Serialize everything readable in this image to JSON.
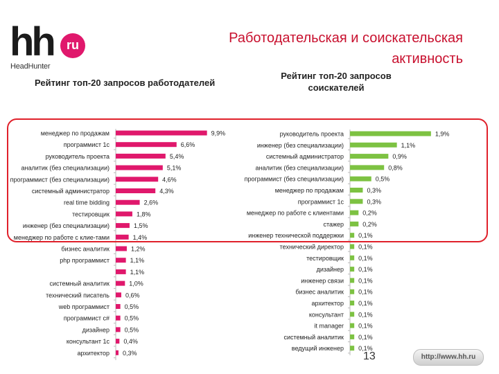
{
  "header": {
    "logo_main": "hh",
    "logo_badge": "ru",
    "logo_sub": "HeadHunter",
    "title": "Работодательская и соискательская активность",
    "title_color": "#c8102e"
  },
  "footer": {
    "page_number": "13",
    "url": "http://www.hh.ru"
  },
  "colors": {
    "employer_bar": "#e0186c",
    "seeker_bar": "#7dc242",
    "highlight_frame": "#e0202a"
  },
  "chart_data": [
    {
      "type": "bar",
      "orientation": "horizontal",
      "title": "Рейтинг топ-20 запросов работодателей",
      "xlim": [
        0,
        10
      ],
      "categories": [
        "менеджер по продажам",
        "программист 1с",
        "руководитель проекта",
        "аналитик (без специализации)",
        "программист (без специализации)",
        "системный администратор",
        "real time bidding",
        "тестировщик",
        "инженер (без специализации)",
        "менеджер по работе с клие-тами",
        "бизнес аналитик",
        "php программист",
        "",
        "системный аналитик",
        "технический писатель",
        "web программист",
        "программист c#",
        "дизайнер",
        "консультант 1с",
        "архитектор"
      ],
      "values": [
        9.9,
        6.6,
        5.4,
        5.1,
        4.6,
        4.3,
        2.6,
        1.8,
        1.5,
        1.4,
        1.2,
        1.1,
        1.1,
        1.0,
        0.6,
        0.5,
        0.5,
        0.5,
        0.4,
        0.3
      ],
      "labels": [
        "9,9%",
        "6,6%",
        "5,4%",
        "5,1%",
        "4,6%",
        "4,3%",
        "2,6%",
        "1,8%",
        "1,5%",
        "1,4%",
        "1,2%",
        "1,1%",
        "1,1%",
        "1,0%",
        "0,6%",
        "0,5%",
        "0,5%",
        "0,5%",
        "0,4%",
        "0,3%"
      ]
    },
    {
      "type": "bar",
      "orientation": "horizontal",
      "title": "Рейтинг топ-20 запросов соискателей",
      "xlim": [
        0,
        2
      ],
      "categories": [
        "руководитель проекта",
        "инженер (без специализации)",
        "системный администратор",
        "аналитик (без специализации)",
        "программист (без специализации)",
        "менеджер по продажам",
        "программист 1с",
        "менеджер по работе с клиентами",
        "стажер",
        "инженер технической поддержки",
        "технический директор",
        "тестировщик",
        "дизайнер",
        "инженер связи",
        "бизнес аналитик",
        "архитектор",
        "консультант",
        "it manager",
        "системный аналитик",
        "ведущий инженер"
      ],
      "values": [
        1.9,
        1.1,
        0.9,
        0.8,
        0.5,
        0.3,
        0.3,
        0.2,
        0.2,
        0.1,
        0.1,
        0.1,
        0.1,
        0.1,
        0.1,
        0.1,
        0.1,
        0.1,
        0.1,
        0.1
      ],
      "labels": [
        "1,9%",
        "1,1%",
        "0,9%",
        "0,8%",
        "0,5%",
        "0,3%",
        "0,3%",
        "0,2%",
        "0,2%",
        "0,1%",
        "0,1%",
        "0,1%",
        "0,1%",
        "0,1%",
        "0,1%",
        "0,1%",
        "0,1%",
        "0,1%",
        "0,1%",
        "0,1%"
      ]
    }
  ]
}
